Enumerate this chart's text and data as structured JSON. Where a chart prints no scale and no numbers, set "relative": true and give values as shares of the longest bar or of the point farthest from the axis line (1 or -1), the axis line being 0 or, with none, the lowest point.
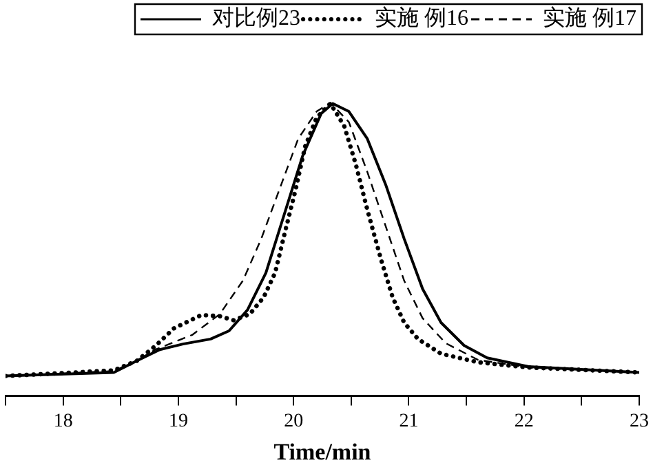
{
  "chart_data": {
    "type": "line",
    "xlabel": "Time/min",
    "relative": true,
    "xlim": [
      17.5,
      23
    ],
    "xticks": [
      {
        "value": 17.5,
        "label": null
      },
      18,
      {
        "value": 18.5,
        "label": null
      },
      19,
      {
        "value": 19.5,
        "label": null
      },
      20,
      {
        "value": 20.5,
        "label": null
      },
      21,
      {
        "value": 21.5,
        "label": null
      },
      22,
      {
        "value": 22.5,
        "label": null
      },
      23
    ],
    "tick_labels": "x",
    "grid": false,
    "legend": "top right",
    "marker": "none",
    "series": [
      {
        "name": "对比例23",
        "color": "#000000",
        "line_style": "solid",
        "x": [
          17.5,
          18.44,
          18.64,
          18.84,
          19.04,
          19.28,
          19.44,
          19.6,
          19.76,
          19.92,
          20.08,
          20.24,
          20.34,
          20.48,
          20.64,
          20.8,
          20.96,
          21.12,
          21.28,
          21.48,
          21.68,
          22.04,
          23
        ],
        "values": [
          0.068,
          0.08,
          0.12,
          0.158,
          0.177,
          0.194,
          0.222,
          0.293,
          0.42,
          0.62,
          0.82,
          0.963,
          0.997,
          0.97,
          0.877,
          0.72,
          0.536,
          0.365,
          0.25,
          0.172,
          0.13,
          0.1,
          0.08
        ]
      },
      {
        "name": "实施 例16",
        "color": "#000000",
        "line_style": "dotted",
        "x": [
          17.5,
          18.44,
          18.64,
          18.8,
          18.96,
          19.2,
          19.36,
          19.48,
          19.62,
          19.74,
          19.84,
          19.92,
          20.02,
          20.1,
          20.2,
          20.32,
          20.44,
          20.54,
          20.64,
          20.76,
          20.86,
          20.96,
          21.08,
          21.28,
          21.6,
          22.04,
          23
        ],
        "values": [
          0.068,
          0.087,
          0.12,
          0.17,
          0.23,
          0.276,
          0.272,
          0.258,
          0.279,
          0.336,
          0.42,
          0.55,
          0.707,
          0.85,
          0.949,
          0.997,
          0.92,
          0.79,
          0.635,
          0.464,
          0.336,
          0.25,
          0.194,
          0.144,
          0.115,
          0.097,
          0.08
        ]
      },
      {
        "name": "实施 例17",
        "color": "#000000",
        "line_style": "dashed",
        "x": [
          17.5,
          18.44,
          18.64,
          18.8,
          19.12,
          19.36,
          19.56,
          19.72,
          19.88,
          20.04,
          20.2,
          20.32,
          20.48,
          20.64,
          20.8,
          20.96,
          21.12,
          21.32,
          21.6,
          22.04,
          23
        ],
        "values": [
          0.068,
          0.085,
          0.12,
          0.158,
          0.208,
          0.279,
          0.393,
          0.536,
          0.707,
          0.877,
          0.97,
          1,
          0.934,
          0.764,
          0.578,
          0.393,
          0.265,
          0.18,
          0.123,
          0.097,
          0.08
        ]
      }
    ]
  }
}
